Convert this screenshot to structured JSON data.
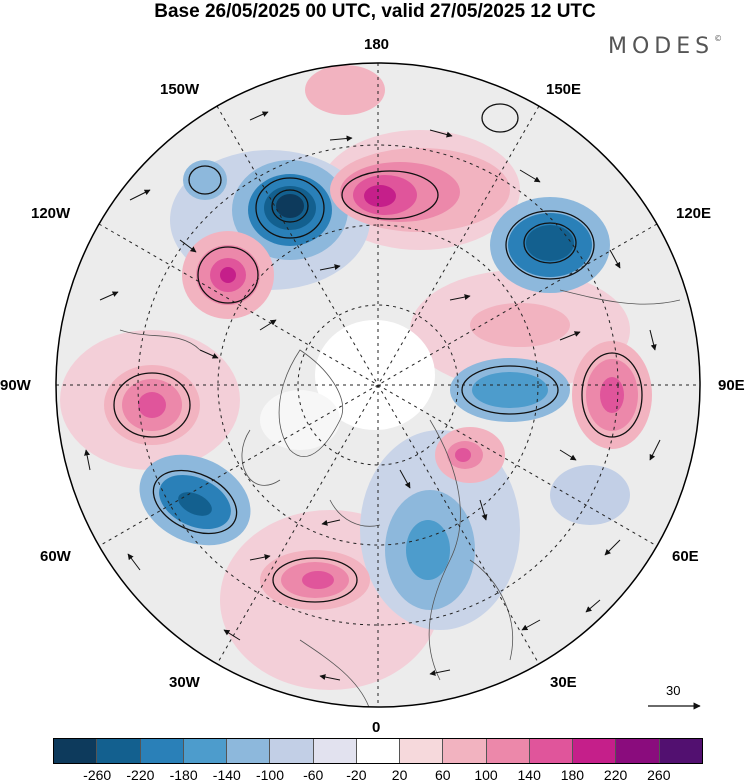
{
  "title": "Base 26/05/2025 00 UTC, valid 27/05/2025 12 UTC",
  "brand": "MODES",
  "brand_mark": "©",
  "longitude_labels": {
    "top": "180",
    "bottom": "0",
    "left": "90W",
    "right": "90E",
    "upper_left_1": "150W",
    "upper_left_2": "120W",
    "lower_left_1": "60W",
    "lower_left_2": "30W",
    "upper_right_1": "150E",
    "upper_right_2": "120E",
    "lower_right_1": "60E",
    "lower_right_2": "30E"
  },
  "reference_vector": "30",
  "colorbar": {
    "ticks": [
      "-260",
      "-220",
      "-180",
      "-140",
      "-100",
      "-60",
      "-20",
      "20",
      "60",
      "100",
      "140",
      "180",
      "220",
      "260"
    ],
    "colors": [
      "#0d3a5c",
      "#13608f",
      "#2a80b8",
      "#4d9ccc",
      "#8db8dc",
      "#c2cfe6",
      "#e2e2ef",
      "#ffffff",
      "#f6d9dc",
      "#f2b3c0",
      "#ec88aa",
      "#e0559b",
      "#c51f8a",
      "#8a0c7d",
      "#521070"
    ]
  },
  "anomaly_colors": {
    "strong_negative": "#1e4f7a",
    "negative": "#3f88c0",
    "weak_negative": "#a9bfdf",
    "strong_positive": "#c51f8a",
    "positive": "#e96aa5",
    "weak_positive": "#f3c2cf",
    "neutral": "#e9e9e9"
  }
}
